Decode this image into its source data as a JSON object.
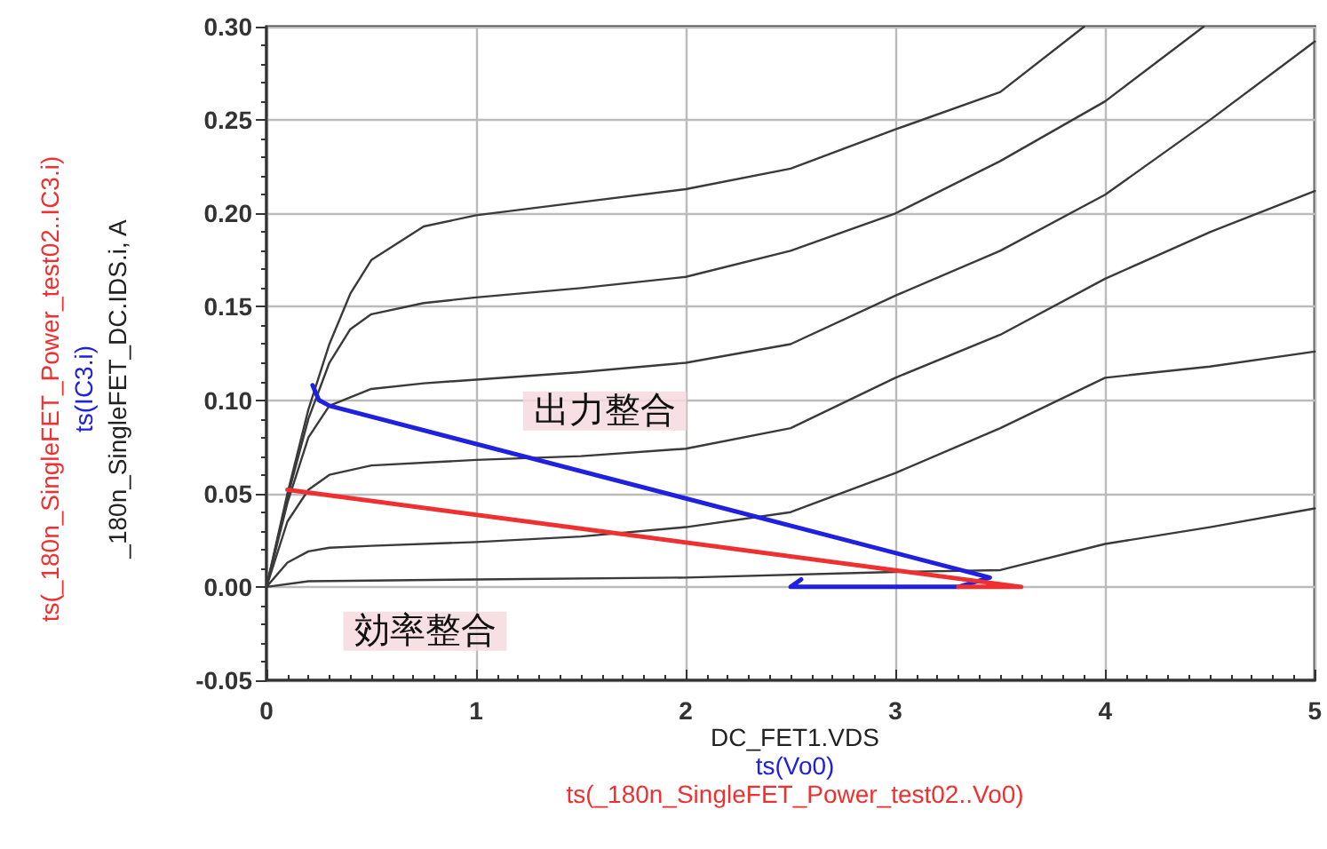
{
  "chart_data": {
    "type": "line",
    "xlabel": "DC_FET1.VDS",
    "ylabel": "_180n_SingleFET_DC.IDS.i, A",
    "xlim": [
      0,
      5
    ],
    "xticks": [
      0,
      1,
      2,
      3,
      4,
      5
    ],
    "ylim": [
      -0.05,
      0.3
    ],
    "yticks": [
      -0.05,
      {
        "value": 0,
        "label": "0.00"
      },
      0.05,
      {
        "value": 0.1,
        "label": "0.10"
      },
      0.15,
      {
        "value": 0.2,
        "label": "0.20"
      },
      0.25,
      {
        "value": 0.3,
        "label": "0.30"
      }
    ],
    "grid": true,
    "legend": false,
    "marker": "none",
    "line_style": "solid",
    "series": [
      {
        "color": "#3a3a3a",
        "x": [
          0,
          0.1,
          0.2,
          0.3,
          0.4,
          0.5,
          0.75,
          1,
          1.5,
          2,
          2.5,
          3,
          3.5,
          3.9
        ],
        "values": [
          0,
          0.05,
          0.095,
          0.13,
          0.157,
          0.175,
          0.193,
          0.199,
          0.206,
          0.213,
          0.224,
          0.245,
          0.265,
          0.3
        ]
      },
      {
        "color": "#3a3a3a",
        "x": [
          0,
          0.1,
          0.2,
          0.3,
          0.4,
          0.5,
          0.75,
          1,
          1.5,
          2,
          2.5,
          3,
          3.5,
          4,
          4.47
        ],
        "values": [
          0,
          0.048,
          0.09,
          0.12,
          0.138,
          0.146,
          0.152,
          0.155,
          0.16,
          0.166,
          0.18,
          0.2,
          0.228,
          0.26,
          0.3
        ]
      },
      {
        "color": "#3a3a3a",
        "x": [
          0,
          0.1,
          0.2,
          0.3,
          0.5,
          0.75,
          1,
          1.5,
          2,
          2.5,
          3,
          3.5,
          4,
          4.5,
          5
        ],
        "values": [
          0,
          0.045,
          0.08,
          0.097,
          0.106,
          0.109,
          0.111,
          0.115,
          0.12,
          0.13,
          0.156,
          0.18,
          0.21,
          0.25,
          0.292
        ]
      },
      {
        "color": "#3a3a3a",
        "x": [
          0,
          0.1,
          0.2,
          0.3,
          0.5,
          1,
          1.5,
          2,
          2.5,
          3,
          3.5,
          4,
          4.5,
          5
        ],
        "values": [
          0,
          0.035,
          0.052,
          0.06,
          0.065,
          0.068,
          0.07,
          0.074,
          0.085,
          0.112,
          0.135,
          0.165,
          0.19,
          0.212
        ]
      },
      {
        "color": "#3a3a3a",
        "x": [
          0,
          0.1,
          0.2,
          0.3,
          0.5,
          1,
          1.5,
          2,
          2.5,
          3,
          3.5,
          4,
          4.5,
          5
        ],
        "values": [
          0,
          0.013,
          0.019,
          0.021,
          0.022,
          0.024,
          0.027,
          0.032,
          0.04,
          0.061,
          0.085,
          0.112,
          0.118,
          0.126
        ]
      },
      {
        "color": "#3a3a3a",
        "x": [
          0,
          0.2,
          1,
          2,
          3,
          3.5,
          4,
          4.5,
          5
        ],
        "values": [
          0,
          0.003,
          0.004,
          0.005,
          0.008,
          0.009,
          0.023,
          0.032,
          0.042
        ]
      },
      {
        "name": "ts(IC3.i)",
        "color": "#2020e0",
        "x": [
          0.22,
          0.25,
          0.3,
          3.45,
          3.3,
          2.5,
          2.55
        ],
        "values": [
          0.108,
          0.1,
          0.097,
          0.005,
          0,
          0,
          0.004
        ]
      },
      {
        "name": "ts(_180n_SingleFET_Power_test02..IC3.i)",
        "color": "#f03030",
        "x": [
          0.1,
          3.6,
          3.3
        ],
        "values": [
          0.052,
          0,
          0
        ]
      }
    ],
    "annotations": [
      "出力整合",
      "効率整合",
      "ts(Vo0)",
      "ts(_180n_SingleFET_Power_test02..Vo0)"
    ]
  }
}
